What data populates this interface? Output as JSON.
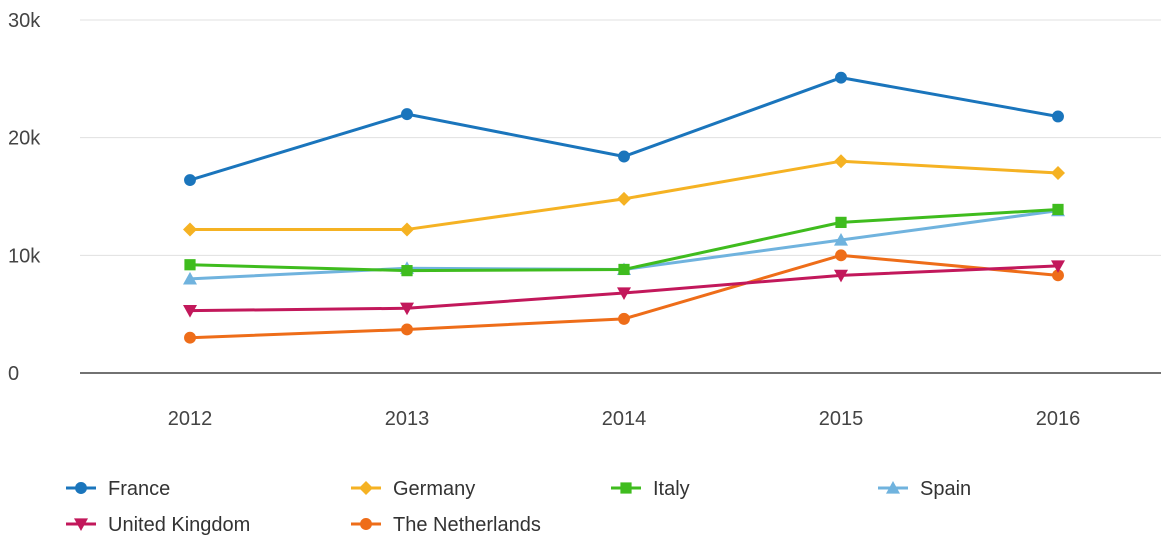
{
  "chart_data": {
    "type": "line",
    "title": "",
    "xlabel": "",
    "ylabel": "",
    "categories": [
      "2012",
      "2013",
      "2014",
      "2015",
      "2016"
    ],
    "y_ticks": [
      0,
      10000,
      20000,
      30000
    ],
    "y_tick_labels": [
      "0",
      "10k",
      "20k",
      "30k"
    ],
    "ylim": [
      0,
      30000
    ],
    "grid": true,
    "legend_position": "bottom-left",
    "series": [
      {
        "name": "France",
        "color": "#1a75bc",
        "marker": "circle",
        "values": [
          16400,
          22000,
          18400,
          25100,
          21800
        ]
      },
      {
        "name": "Germany",
        "color": "#f5b223",
        "marker": "diamond",
        "values": [
          12200,
          12200,
          14800,
          18000,
          17000
        ]
      },
      {
        "name": "Italy",
        "color": "#3fbc1e",
        "marker": "square",
        "values": [
          9200,
          8700,
          8800,
          12800,
          13900
        ]
      },
      {
        "name": "Spain",
        "color": "#70b3de",
        "marker": "triangle-up",
        "values": [
          8000,
          8900,
          8800,
          11300,
          13800
        ]
      },
      {
        "name": "United Kingdom",
        "color": "#c2185b",
        "marker": "triangle-down",
        "values": [
          5300,
          5500,
          6800,
          8300,
          9100
        ]
      },
      {
        "name": "The Netherlands",
        "color": "#ee6d19",
        "marker": "circle",
        "values": [
          3000,
          3700,
          4600,
          10000,
          8300
        ]
      }
    ]
  }
}
